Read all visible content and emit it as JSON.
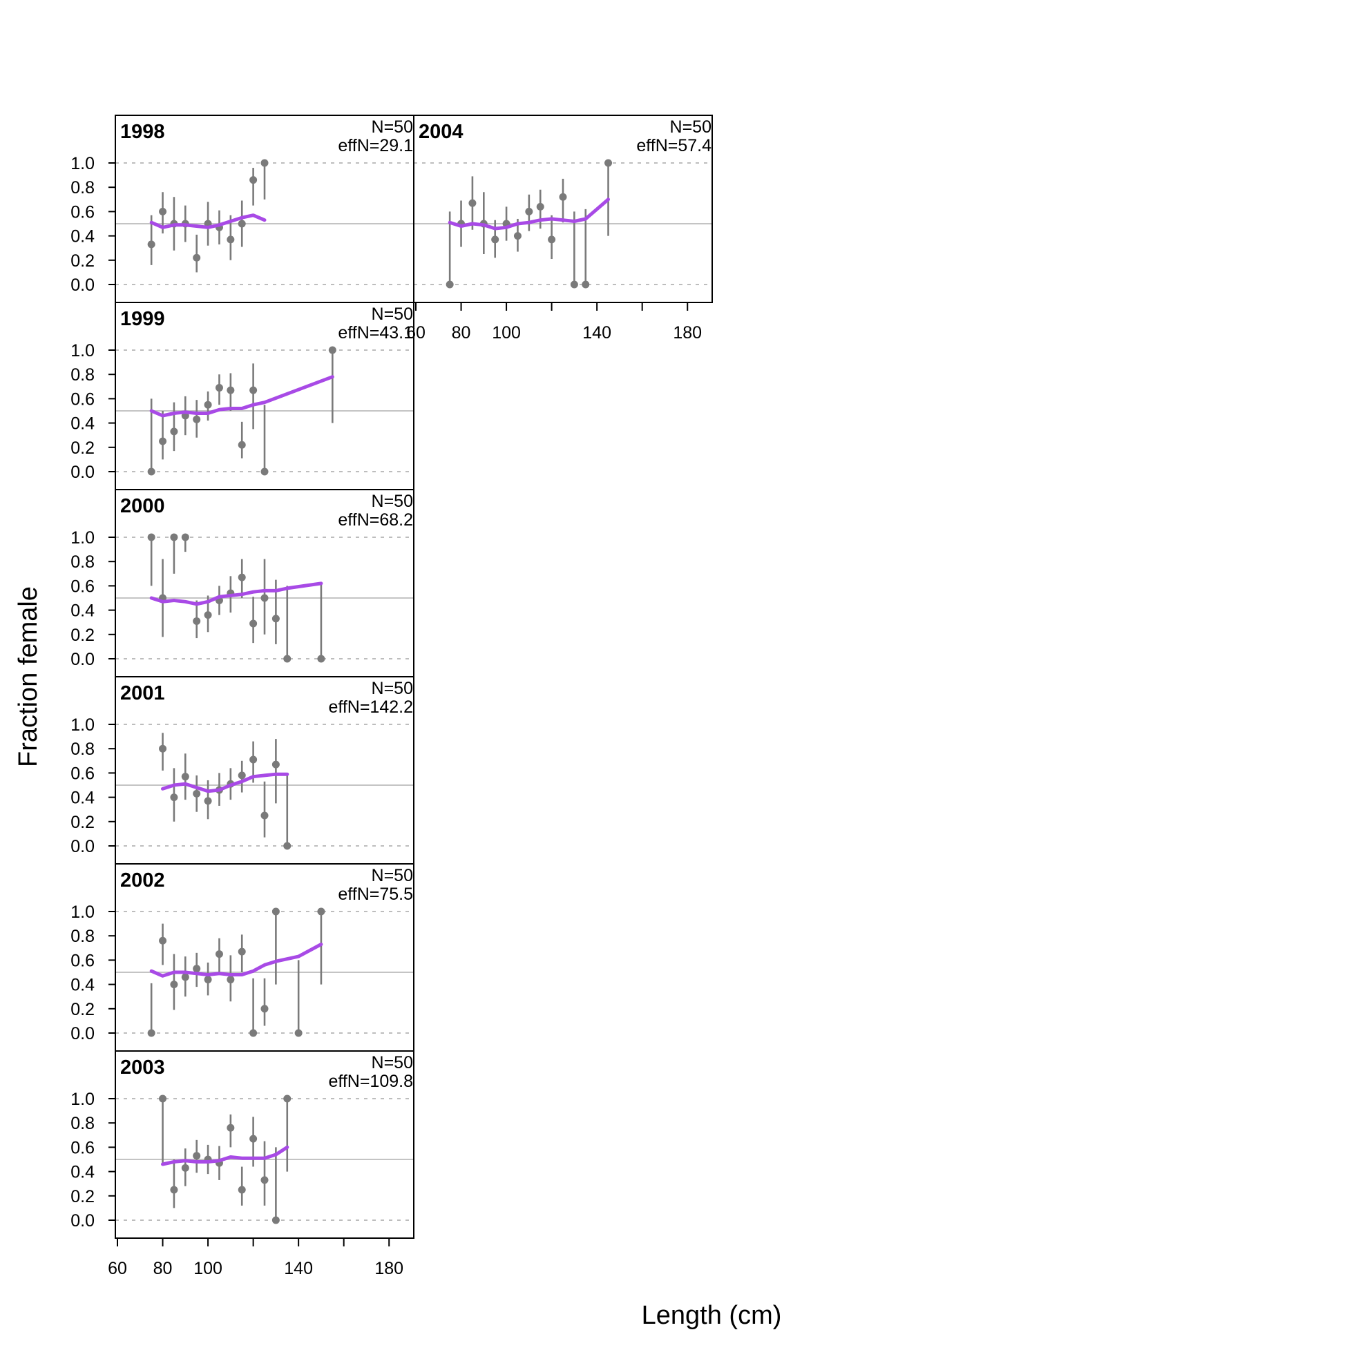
{
  "colors": {
    "fit": "#a84ae6",
    "observed": "#7a7a7a"
  },
  "chart_data": {
    "type": "scatter",
    "xlabel": "Length (cm)",
    "ylabel": "Fraction female",
    "xlim": [
      60,
      190
    ],
    "ylim": [
      0,
      1
    ],
    "x_ticks": [
      60,
      80,
      100,
      140,
      180
    ],
    "y_ticks": [
      "0.0",
      "0.2",
      "0.4",
      "0.6",
      "0.8",
      "1.0"
    ],
    "reference_lines": [
      0,
      0.5,
      1
    ],
    "panels": [
      {
        "year": "1998",
        "n_label": "N=50",
        "effn_label": "effN=29.1",
        "observed": [
          {
            "x": 75,
            "y": 0.33,
            "lo": 0.16,
            "hi": 0.57
          },
          {
            "x": 80,
            "y": 0.6,
            "lo": 0.42,
            "hi": 0.76
          },
          {
            "x": 85,
            "y": 0.5,
            "lo": 0.28,
            "hi": 0.72
          },
          {
            "x": 90,
            "y": 0.5,
            "lo": 0.35,
            "hi": 0.65
          },
          {
            "x": 95,
            "y": 0.22,
            "lo": 0.1,
            "hi": 0.41
          },
          {
            "x": 100,
            "y": 0.5,
            "lo": 0.32,
            "hi": 0.68
          },
          {
            "x": 105,
            "y": 0.47,
            "lo": 0.33,
            "hi": 0.61
          },
          {
            "x": 110,
            "y": 0.37,
            "lo": 0.2,
            "hi": 0.57
          },
          {
            "x": 115,
            "y": 0.5,
            "lo": 0.31,
            "hi": 0.69
          },
          {
            "x": 120,
            "y": 0.86,
            "lo": 0.65,
            "hi": 0.96
          },
          {
            "x": 125,
            "y": 1.0,
            "lo": 0.7,
            "hi": 1.0
          }
        ],
        "fit": {
          "x": [
            75,
            80,
            85,
            90,
            95,
            100,
            105,
            110,
            115,
            120,
            125
          ],
          "y": [
            0.51,
            0.47,
            0.49,
            0.49,
            0.48,
            0.47,
            0.49,
            0.52,
            0.55,
            0.57,
            0.53
          ]
        }
      },
      {
        "year": "1999",
        "n_label": "N=50",
        "effn_label": "effN=43.1",
        "observed": [
          {
            "x": 75,
            "y": 0.0,
            "lo": 0.0,
            "hi": 0.6
          },
          {
            "x": 80,
            "y": 0.25,
            "lo": 0.1,
            "hi": 0.5
          },
          {
            "x": 85,
            "y": 0.33,
            "lo": 0.17,
            "hi": 0.57
          },
          {
            "x": 90,
            "y": 0.46,
            "lo": 0.3,
            "hi": 0.62
          },
          {
            "x": 95,
            "y": 0.43,
            "lo": 0.28,
            "hi": 0.59
          },
          {
            "x": 100,
            "y": 0.55,
            "lo": 0.42,
            "hi": 0.66
          },
          {
            "x": 105,
            "y": 0.69,
            "lo": 0.55,
            "hi": 0.8
          },
          {
            "x": 110,
            "y": 0.67,
            "lo": 0.5,
            "hi": 0.81
          },
          {
            "x": 115,
            "y": 0.22,
            "lo": 0.11,
            "hi": 0.41
          },
          {
            "x": 120,
            "y": 0.67,
            "lo": 0.35,
            "hi": 0.89
          },
          {
            "x": 125,
            "y": 0.0,
            "lo": 0.0,
            "hi": 0.55
          },
          {
            "x": 155,
            "y": 1.0,
            "lo": 0.4,
            "hi": 1.0
          }
        ],
        "fit": {
          "x": [
            75,
            80,
            85,
            90,
            95,
            100,
            105,
            110,
            115,
            120,
            125,
            155
          ],
          "y": [
            0.5,
            0.46,
            0.48,
            0.49,
            0.48,
            0.48,
            0.51,
            0.52,
            0.52,
            0.55,
            0.57,
            0.78
          ]
        }
      },
      {
        "year": "2000",
        "n_label": "N=50",
        "effn_label": "effN=68.2",
        "observed": [
          {
            "x": 75,
            "y": 1.0,
            "lo": 0.6,
            "hi": 1.0
          },
          {
            "x": 80,
            "y": 0.5,
            "lo": 0.18,
            "hi": 0.82
          },
          {
            "x": 85,
            "y": 1.0,
            "lo": 0.7,
            "hi": 1.0
          },
          {
            "x": 90,
            "y": 1.0,
            "lo": 0.88,
            "hi": 1.0
          },
          {
            "x": 95,
            "y": 0.31,
            "lo": 0.17,
            "hi": 0.48
          },
          {
            "x": 100,
            "y": 0.36,
            "lo": 0.22,
            "hi": 0.52
          },
          {
            "x": 105,
            "y": 0.48,
            "lo": 0.36,
            "hi": 0.6
          },
          {
            "x": 110,
            "y": 0.54,
            "lo": 0.38,
            "hi": 0.68
          },
          {
            "x": 115,
            "y": 0.67,
            "lo": 0.5,
            "hi": 0.82
          },
          {
            "x": 120,
            "y": 0.29,
            "lo": 0.13,
            "hi": 0.51
          },
          {
            "x": 125,
            "y": 0.5,
            "lo": 0.2,
            "hi": 0.82
          },
          {
            "x": 130,
            "y": 0.33,
            "lo": 0.12,
            "hi": 0.65
          },
          {
            "x": 135,
            "y": 0.0,
            "lo": 0.0,
            "hi": 0.6
          },
          {
            "x": 150,
            "y": 0.0,
            "lo": 0.0,
            "hi": 0.62
          }
        ],
        "fit": {
          "x": [
            75,
            80,
            85,
            90,
            95,
            100,
            105,
            110,
            115,
            120,
            125,
            130,
            135,
            150
          ],
          "y": [
            0.5,
            0.47,
            0.48,
            0.47,
            0.45,
            0.47,
            0.51,
            0.52,
            0.53,
            0.55,
            0.56,
            0.56,
            0.58,
            0.62
          ]
        }
      },
      {
        "year": "2001",
        "n_label": "N=50",
        "effn_label": "effN=142.2",
        "observed": [
          {
            "x": 80,
            "y": 0.8,
            "lo": 0.62,
            "hi": 0.93
          },
          {
            "x": 85,
            "y": 0.4,
            "lo": 0.2,
            "hi": 0.64
          },
          {
            "x": 90,
            "y": 0.57,
            "lo": 0.38,
            "hi": 0.76
          },
          {
            "x": 95,
            "y": 0.43,
            "lo": 0.28,
            "hi": 0.58
          },
          {
            "x": 100,
            "y": 0.37,
            "lo": 0.22,
            "hi": 0.54
          },
          {
            "x": 105,
            "y": 0.46,
            "lo": 0.33,
            "hi": 0.6
          },
          {
            "x": 110,
            "y": 0.51,
            "lo": 0.38,
            "hi": 0.64
          },
          {
            "x": 115,
            "y": 0.58,
            "lo": 0.44,
            "hi": 0.7
          },
          {
            "x": 120,
            "y": 0.71,
            "lo": 0.52,
            "hi": 0.86
          },
          {
            "x": 125,
            "y": 0.25,
            "lo": 0.07,
            "hi": 0.53
          },
          {
            "x": 130,
            "y": 0.67,
            "lo": 0.35,
            "hi": 0.88
          },
          {
            "x": 135,
            "y": 0.0,
            "lo": 0.0,
            "hi": 0.6
          }
        ],
        "fit": {
          "x": [
            80,
            85,
            90,
            95,
            100,
            105,
            110,
            115,
            120,
            125,
            130,
            135
          ],
          "y": [
            0.47,
            0.5,
            0.51,
            0.48,
            0.45,
            0.46,
            0.5,
            0.53,
            0.57,
            0.58,
            0.59,
            0.59
          ]
        }
      },
      {
        "year": "2002",
        "n_label": "N=50",
        "effn_label": "effN=75.5",
        "observed": [
          {
            "x": 75,
            "y": 0.0,
            "lo": 0.0,
            "hi": 0.41
          },
          {
            "x": 80,
            "y": 0.76,
            "lo": 0.56,
            "hi": 0.9
          },
          {
            "x": 85,
            "y": 0.4,
            "lo": 0.19,
            "hi": 0.65
          },
          {
            "x": 90,
            "y": 0.46,
            "lo": 0.3,
            "hi": 0.63
          },
          {
            "x": 95,
            "y": 0.53,
            "lo": 0.38,
            "hi": 0.66
          },
          {
            "x": 100,
            "y": 0.44,
            "lo": 0.31,
            "hi": 0.58
          },
          {
            "x": 105,
            "y": 0.65,
            "lo": 0.5,
            "hi": 0.78
          },
          {
            "x": 110,
            "y": 0.44,
            "lo": 0.26,
            "hi": 0.64
          },
          {
            "x": 115,
            "y": 0.67,
            "lo": 0.5,
            "hi": 0.81
          },
          {
            "x": 120,
            "y": 0.0,
            "lo": 0.0,
            "hi": 0.45
          },
          {
            "x": 125,
            "y": 0.2,
            "lo": 0.06,
            "hi": 0.45
          },
          {
            "x": 130,
            "y": 1.0,
            "lo": 0.4,
            "hi": 1.0
          },
          {
            "x": 140,
            "y": 0.0,
            "lo": 0.0,
            "hi": 0.6
          },
          {
            "x": 150,
            "y": 1.0,
            "lo": 0.4,
            "hi": 1.0
          }
        ],
        "fit": {
          "x": [
            75,
            80,
            85,
            90,
            95,
            100,
            105,
            110,
            115,
            120,
            125,
            130,
            140,
            150
          ],
          "y": [
            0.51,
            0.47,
            0.5,
            0.5,
            0.49,
            0.48,
            0.49,
            0.48,
            0.48,
            0.51,
            0.56,
            0.59,
            0.63,
            0.73
          ]
        }
      },
      {
        "year": "2003",
        "n_label": "N=50",
        "effn_label": "effN=109.8",
        "observed": [
          {
            "x": 80,
            "y": 1.0,
            "lo": 0.45,
            "hi": 1.0
          },
          {
            "x": 85,
            "y": 0.25,
            "lo": 0.1,
            "hi": 0.5
          },
          {
            "x": 90,
            "y": 0.43,
            "lo": 0.28,
            "hi": 0.59
          },
          {
            "x": 95,
            "y": 0.53,
            "lo": 0.39,
            "hi": 0.66
          },
          {
            "x": 100,
            "y": 0.5,
            "lo": 0.38,
            "hi": 0.62
          },
          {
            "x": 105,
            "y": 0.47,
            "lo": 0.33,
            "hi": 0.61
          },
          {
            "x": 110,
            "y": 0.76,
            "lo": 0.6,
            "hi": 0.87
          },
          {
            "x": 115,
            "y": 0.25,
            "lo": 0.12,
            "hi": 0.44
          },
          {
            "x": 120,
            "y": 0.67,
            "lo": 0.44,
            "hi": 0.85
          },
          {
            "x": 125,
            "y": 0.33,
            "lo": 0.12,
            "hi": 0.65
          },
          {
            "x": 130,
            "y": 0.0,
            "lo": 0.0,
            "hi": 0.6
          },
          {
            "x": 135,
            "y": 1.0,
            "lo": 0.4,
            "hi": 1.0
          }
        ],
        "fit": {
          "x": [
            80,
            85,
            90,
            95,
            100,
            105,
            110,
            115,
            120,
            125,
            130,
            135
          ],
          "y": [
            0.46,
            0.48,
            0.49,
            0.48,
            0.48,
            0.49,
            0.52,
            0.51,
            0.51,
            0.51,
            0.54,
            0.6
          ]
        }
      },
      {
        "year": "2004",
        "n_label": "N=50",
        "effn_label": "effN=57.4",
        "observed": [
          {
            "x": 75,
            "y": 0.0,
            "lo": 0.0,
            "hi": 0.6
          },
          {
            "x": 80,
            "y": 0.5,
            "lo": 0.31,
            "hi": 0.69
          },
          {
            "x": 85,
            "y": 0.67,
            "lo": 0.45,
            "hi": 0.89
          },
          {
            "x": 90,
            "y": 0.5,
            "lo": 0.25,
            "hi": 0.76
          },
          {
            "x": 95,
            "y": 0.37,
            "lo": 0.22,
            "hi": 0.53
          },
          {
            "x": 100,
            "y": 0.5,
            "lo": 0.36,
            "hi": 0.64
          },
          {
            "x": 105,
            "y": 0.4,
            "lo": 0.27,
            "hi": 0.54
          },
          {
            "x": 110,
            "y": 0.6,
            "lo": 0.44,
            "hi": 0.74
          },
          {
            "x": 115,
            "y": 0.64,
            "lo": 0.46,
            "hi": 0.78
          },
          {
            "x": 120,
            "y": 0.37,
            "lo": 0.21,
            "hi": 0.57
          },
          {
            "x": 125,
            "y": 0.72,
            "lo": 0.51,
            "hi": 0.87
          },
          {
            "x": 130,
            "y": 0.0,
            "lo": 0.0,
            "hi": 0.6
          },
          {
            "x": 135,
            "y": 0.0,
            "lo": 0.0,
            "hi": 0.62
          },
          {
            "x": 145,
            "y": 1.0,
            "lo": 0.4,
            "hi": 1.0
          }
        ],
        "fit": {
          "x": [
            75,
            80,
            85,
            90,
            95,
            100,
            105,
            110,
            115,
            120,
            125,
            130,
            135,
            145
          ],
          "y": [
            0.51,
            0.48,
            0.5,
            0.49,
            0.46,
            0.47,
            0.5,
            0.51,
            0.53,
            0.54,
            0.53,
            0.52,
            0.54,
            0.7
          ]
        }
      }
    ]
  }
}
